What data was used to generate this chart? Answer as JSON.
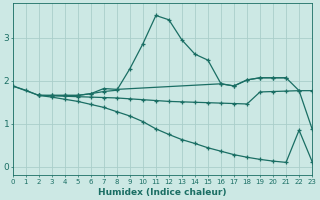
{
  "xlabel": "Humidex (Indice chaleur)",
  "x": [
    0,
    1,
    2,
    3,
    4,
    5,
    6,
    7,
    8,
    9,
    10,
    11,
    12,
    13,
    14,
    15,
    16,
    17,
    18,
    19,
    20,
    21,
    22,
    23
  ],
  "line1_x": [
    0,
    1,
    2,
    3,
    4,
    5,
    6,
    7,
    8,
    9,
    10,
    11,
    12,
    13,
    14,
    15,
    16,
    17,
    18,
    19,
    20,
    21,
    22,
    23
  ],
  "line1_y": [
    1.88,
    1.78,
    1.66,
    1.66,
    1.66,
    1.66,
    1.7,
    1.75,
    1.78,
    2.28,
    2.86,
    3.52,
    3.42,
    2.95,
    2.62,
    2.48,
    1.93,
    1.88,
    2.02,
    2.07,
    2.07,
    2.07,
    1.77,
    0.88
  ],
  "line2_x": [
    2,
    3,
    4,
    5,
    6,
    7,
    8,
    16,
    17,
    18,
    19,
    20,
    21
  ],
  "line2_y": [
    1.66,
    1.66,
    1.66,
    1.66,
    1.7,
    1.82,
    1.8,
    1.93,
    1.88,
    2.02,
    2.07,
    2.07,
    2.07
  ],
  "line3_x": [
    2,
    3,
    4,
    5,
    6,
    7,
    8,
    9,
    10,
    11,
    12,
    13,
    14,
    15,
    16,
    17,
    18,
    19,
    20,
    21,
    22,
    23
  ],
  "line3_y": [
    1.66,
    1.65,
    1.64,
    1.63,
    1.62,
    1.61,
    1.6,
    1.58,
    1.56,
    1.54,
    1.52,
    1.51,
    1.5,
    1.49,
    1.48,
    1.47,
    1.46,
    1.74,
    1.75,
    1.76,
    1.77,
    1.77
  ],
  "line4_x": [
    0,
    2,
    3,
    4,
    5,
    6,
    7,
    8,
    9,
    10,
    11,
    12,
    13,
    14,
    15,
    16,
    17,
    18,
    19,
    20,
    21,
    22,
    23
  ],
  "line4_y": [
    1.88,
    1.66,
    1.62,
    1.57,
    1.52,
    1.45,
    1.38,
    1.28,
    1.18,
    1.05,
    0.88,
    0.75,
    0.63,
    0.54,
    0.44,
    0.36,
    0.28,
    0.22,
    0.17,
    0.13,
    0.1,
    0.85,
    0.12
  ],
  "bg_color": "#cce8e4",
  "line_color": "#1a6e64",
  "grid_color": "#aaceca",
  "xlim": [
    0,
    23
  ],
  "ylim": [
    -0.2,
    3.8
  ],
  "yticks": [
    0,
    1,
    2,
    3
  ],
  "xtick_labels": [
    "0",
    "1",
    "2",
    "3",
    "4",
    "5",
    "6",
    "7",
    "8",
    "9",
    "10",
    "11",
    "12",
    "13",
    "14",
    "15",
    "16",
    "17",
    "18",
    "19",
    "20",
    "21",
    "22",
    "23"
  ]
}
